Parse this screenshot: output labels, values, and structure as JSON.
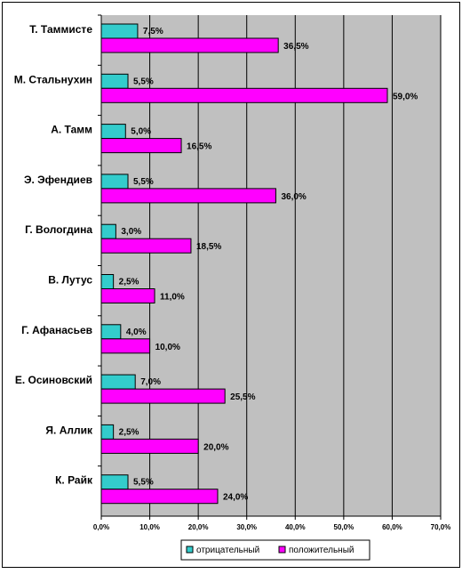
{
  "chart_data": {
    "type": "bar",
    "orientation": "horizontal",
    "categories": [
      "Т. Таммисте",
      "М. Стальнухин",
      "А. Тамм",
      "Э. Эфендиев",
      "Г. Вологдина",
      "В. Лутус",
      "Г. Афанасьев",
      "Е. Осиновский",
      "Я. Аллик",
      "К. Райк"
    ],
    "series": [
      {
        "name": "отрицательный",
        "color": "#33CCCC",
        "values": [
          7.5,
          5.5,
          5.0,
          5.5,
          3.0,
          2.5,
          4.0,
          7.0,
          2.5,
          5.5
        ],
        "labels": [
          "7,5%",
          "5,5%",
          "5,0%",
          "5,5%",
          "3,0%",
          "2,5%",
          "4,0%",
          "7,0%",
          "2,5%",
          "5,5%"
        ]
      },
      {
        "name": "положительный",
        "color": "#FF00FF",
        "values": [
          36.5,
          59.0,
          16.5,
          36.0,
          18.5,
          11.0,
          10.0,
          25.5,
          20.0,
          24.0
        ],
        "labels": [
          "36,5%",
          "59,0%",
          "16,5%",
          "36,0%",
          "18,5%",
          "11,0%",
          "10,0%",
          "25,5%",
          "20,0%",
          "24,0%"
        ]
      }
    ],
    "xlim": [
      0,
      70
    ],
    "xticks": [
      "0,0%",
      "10,0%",
      "20,0%",
      "30,0%",
      "40,0%",
      "50,0%",
      "60,0%",
      "70,0%"
    ],
    "title": "",
    "xlabel": "",
    "ylabel": "",
    "grid": true,
    "legend": "bottom",
    "plot_background": "#C0C0C0"
  }
}
